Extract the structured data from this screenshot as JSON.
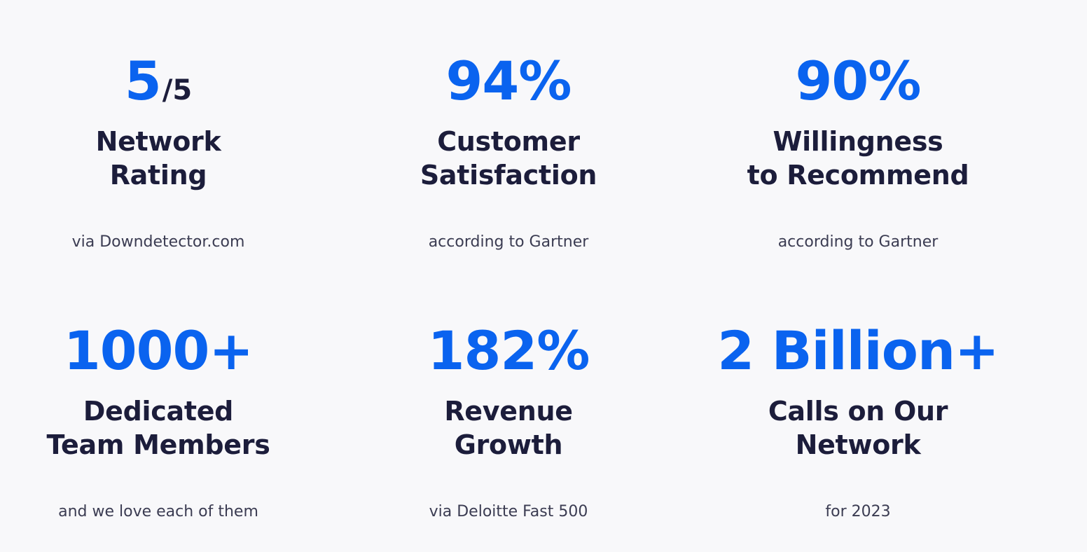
{
  "stats": [
    {
      "value": "5",
      "value_suffix": "/5",
      "title_line1": "Network",
      "title_line2": "Rating",
      "note": "via Downdetector.com"
    },
    {
      "value": "94%",
      "title_line1": "Customer",
      "title_line2": "Satisfaction",
      "note": "according to Gartner"
    },
    {
      "value": "90%",
      "title_line1": "Willingness",
      "title_line2": "to Recommend",
      "note": "according to Gartner"
    },
    {
      "value": "1000+",
      "title_line1": "Dedicated",
      "title_line2": "Team Members",
      "note": "and we love each of them"
    },
    {
      "value": "182%",
      "title_line1": "Revenue",
      "title_line2": "Growth",
      "note": "via Deloitte Fast 500"
    },
    {
      "value": "2 Billion+",
      "title_line1": "Calls on Our",
      "title_line2": "Network",
      "note": "for 2023"
    }
  ],
  "colors": {
    "accent": "#0a63ef",
    "heading": "#1c1d3b",
    "body_text": "#3b3c52",
    "background": "#f8f8fa"
  }
}
